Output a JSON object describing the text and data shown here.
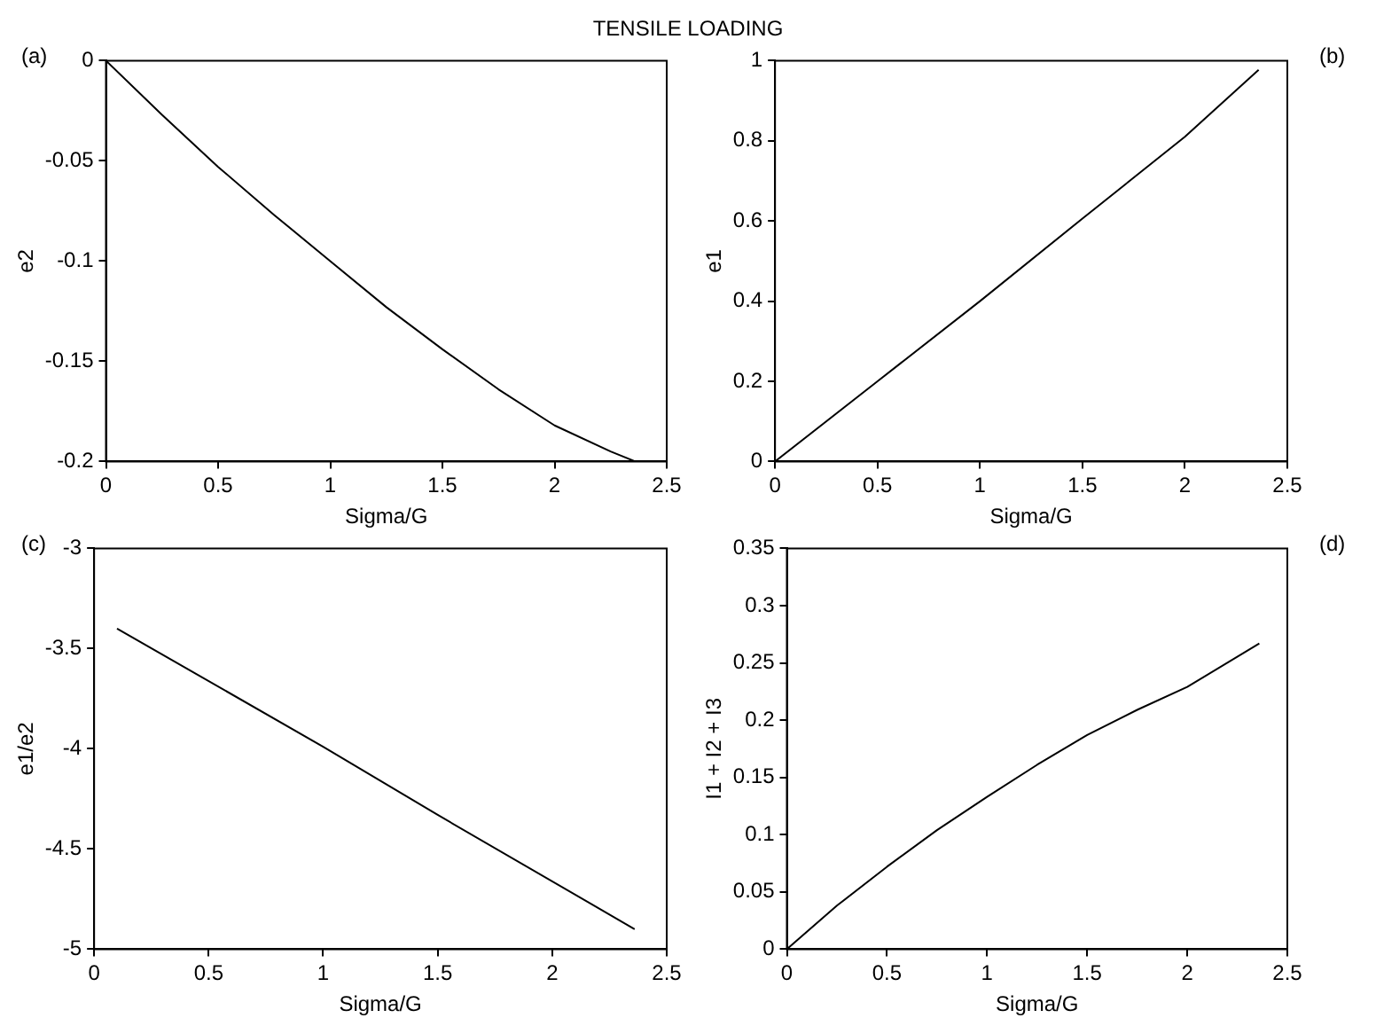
{
  "chart_data": [
    {
      "type": "line",
      "title": "TENSILE LOADING",
      "annotations": [
        "(a)"
      ],
      "xlabel": "Sigma/G",
      "ylabel": "e2",
      "xlim": [
        0,
        2.5
      ],
      "xticks": [
        0,
        0.5,
        1,
        1.5,
        2,
        2.5
      ],
      "ylim": [
        -0.2,
        0
      ],
      "yticks": [
        -0.2,
        -0.15,
        -0.1,
        -0.05,
        0
      ],
      "series": [
        {
          "color": "#000000",
          "x": [
            0,
            0.25,
            0.5,
            0.75,
            1,
            1.25,
            1.5,
            1.75,
            2,
            2.25,
            2.36
          ],
          "values": [
            0,
            -0.027,
            -0.053,
            -0.077,
            -0.1,
            -0.123,
            -0.144,
            -0.164,
            -0.182,
            -0.195,
            -0.2
          ]
        }
      ]
    },
    {
      "type": "line",
      "annotations": [
        "(b)"
      ],
      "xlabel": "Sigma/G",
      "ylabel": "e1",
      "xlim": [
        0,
        2.5
      ],
      "xticks": [
        0,
        0.5,
        1,
        1.5,
        2,
        2.5
      ],
      "ylim": [
        0,
        1
      ],
      "yticks": [
        0,
        0.2,
        0.4,
        0.6,
        0.8,
        1
      ],
      "series": [
        {
          "color": "#000000",
          "x": [
            0,
            0.5,
            1,
            1.5,
            2,
            2.36
          ],
          "values": [
            0,
            0.2,
            0.4,
            0.606,
            0.81,
            0.977
          ]
        }
      ]
    },
    {
      "type": "line",
      "annotations": [
        "(c)"
      ],
      "xlabel": "Sigma/G",
      "ylabel": "e1/e2",
      "xlim": [
        0,
        2.5
      ],
      "xticks": [
        0,
        0.5,
        1,
        1.5,
        2,
        2.5
      ],
      "ylim": [
        -5,
        -3
      ],
      "yticks": [
        -5,
        -4.5,
        -4,
        -3.5,
        -3
      ],
      "series": [
        {
          "color": "#000000",
          "x": [
            0.1,
            1,
            1.5,
            2.36
          ],
          "values": [
            -3.4,
            -3.99,
            -4.33,
            -4.9
          ]
        }
      ]
    },
    {
      "type": "line",
      "annotations": [
        "(d)"
      ],
      "xlabel": "Sigma/G",
      "ylabel": "I1 + I2 + I3",
      "xlim": [
        0,
        2.5
      ],
      "xticks": [
        0,
        0.5,
        1,
        1.5,
        2,
        2.5
      ],
      "ylim": [
        0,
        0.35
      ],
      "yticks": [
        0,
        0.05,
        0.1,
        0.15,
        0.2,
        0.25,
        0.3,
        0.35
      ],
      "series": [
        {
          "color": "#000000",
          "x": [
            0,
            0.25,
            0.5,
            0.75,
            1,
            1.25,
            1.5,
            1.75,
            2,
            2.36
          ],
          "values": [
            0,
            0.038,
            0.072,
            0.104,
            0.133,
            0.161,
            0.187,
            0.209,
            0.229,
            0.267
          ]
        }
      ]
    }
  ]
}
